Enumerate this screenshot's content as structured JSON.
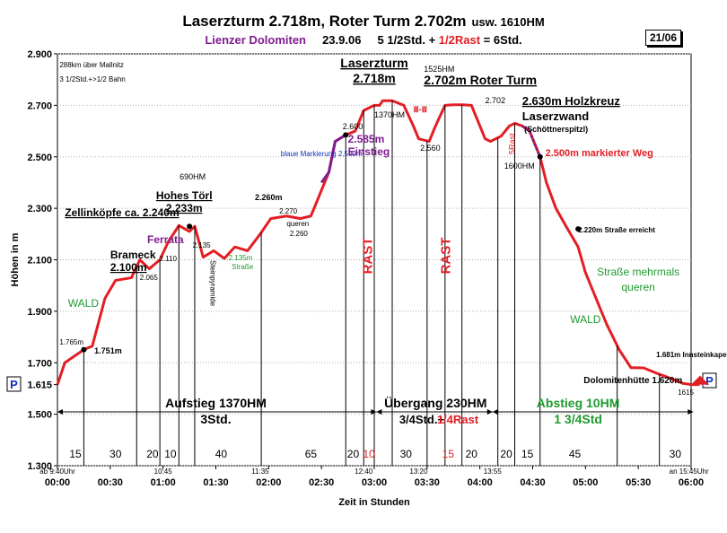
{
  "header": {
    "title": "Laserzturm 2.718m, Roter Turm 2.702m",
    "title_suffix": "usw. 1610HM",
    "region": "Lienzer Dolomiten",
    "date": "23.9.06",
    "time_main": "5 1/2Std. +",
    "time_rast": "1/2Rast",
    "time_total": "= 6Std.",
    "page_no": "21/06"
  },
  "colors": {
    "profile": "#e31e24",
    "purple": "#7f1e8f",
    "green": "#1f9a2e",
    "blue": "#1030c0",
    "plot_bg": "#ffffff"
  },
  "chart_data": {
    "type": "area",
    "xlabel": "Zeit in Stunden",
    "ylabel": "Höhen in m",
    "xlim": [
      0,
      6
    ],
    "ylim": [
      1300,
      2900
    ],
    "x_ticks": [
      "00:00",
      "00:30",
      "01:00",
      "01:30",
      "02:00",
      "02:30",
      "03:00",
      "03:30",
      "04:00",
      "04:30",
      "05:00",
      "05:30",
      "06:00"
    ],
    "y_ticks": [
      "1.300",
      "1.500",
      "1.615",
      "1.700",
      "1.900",
      "2.100",
      "2.300",
      "2.500",
      "2.700",
      "2.900"
    ],
    "series": [
      {
        "x": [
          0.0,
          0.07,
          0.25,
          0.33,
          0.45,
          0.55,
          0.7,
          0.78,
          0.87,
          0.97,
          1.05,
          1.15,
          1.25,
          1.3,
          1.38,
          1.48,
          1.58,
          1.68,
          1.8,
          1.92,
          2.02,
          2.17,
          2.3,
          2.4,
          2.5,
          2.57,
          2.63,
          2.73,
          2.82,
          2.9,
          3.0,
          3.05,
          3.08,
          3.17,
          3.28,
          3.37,
          3.42,
          3.52,
          3.58,
          3.67,
          3.75,
          3.83,
          3.92,
          4.0,
          4.05,
          4.1,
          4.2,
          4.28,
          4.33,
          4.4,
          4.47,
          4.57,
          4.63,
          4.72,
          4.83,
          4.93,
          5.0,
          5.1,
          5.2,
          5.32,
          5.43,
          5.55,
          5.67,
          5.8,
          5.92,
          6.0,
          6.08
        ],
        "y": [
          1615,
          1700,
          1751,
          1765,
          1950,
          2020,
          2030,
          2100,
          2065,
          2100,
          2170,
          2233,
          2210,
          2230,
          2110,
          2135,
          2105,
          2150,
          2135,
          2200,
          2260,
          2270,
          2260,
          2270,
          2370,
          2440,
          2560,
          2585,
          2600,
          2680,
          2700,
          2700,
          2718,
          2718,
          2700,
          2620,
          2570,
          2560,
          2620,
          2700,
          2702,
          2702,
          2700,
          2620,
          2570,
          2560,
          2580,
          2620,
          2630,
          2620,
          2600,
          2500,
          2400,
          2300,
          2220,
          2150,
          2050,
          1950,
          1850,
          1750,
          1681,
          1680,
          1660,
          1640,
          1620,
          1615,
          1615
        ]
      }
    ],
    "rest_labels": [
      "RAST",
      "RAST"
    ],
    "rest_minutes": [
      "10",
      "15"
    ],
    "segment_minutes": [
      "15",
      "30",
      "20",
      "10",
      "40",
      "65",
      "20",
      "10",
      "30",
      "15",
      "20",
      "20",
      "15",
      "45",
      "30"
    ],
    "time_marks": [
      "ab 9:40Uhr",
      "10:45",
      "11:35",
      "12:40",
      "13:20",
      "13:55",
      "an 15:45Uhr"
    ],
    "annotations": {
      "laserzturm_1": "Laserzturm",
      "laserzturm_2": "2.718m",
      "hm1525": "1525HM",
      "roter_turm": "2.702m Roter Turm",
      "holzkreuz": "2.630m Holzkreuz",
      "laserzwand": "Laserzwand",
      "schoettner": "(Schöttnerspitzl)",
      "e2600": "2.600",
      "hm1370": "1370HM",
      "e2560": "2.560",
      "e2702": "2.702",
      "rast5": "5Rast",
      "hm1600": "1600HM",
      "markiert": "2.500m markierter Weg",
      "blaue": "blaue Markierung 2.500m",
      "e2585": "2.585m",
      "einstieg": "Einstieg",
      "e2260_top": "2.260m",
      "e2270": "2.270",
      "queren_small": "queren",
      "e2260": "2.260",
      "hm690": "690HM",
      "hohes_toerl_1": "Hohes Törl",
      "hohes_toerl_2": "2.233m",
      "zellin": "Zellinköpfe ca. 2.240m",
      "ferrata": "Ferrata",
      "brameck_1": "Brameck",
      "brameck_2": "2.100m",
      "e2065": "2.065",
      "e2110": "2.110",
      "e2135": "2.135",
      "steinpyramide": "Steinpyramide",
      "e2135m": "2.135m",
      "strasse": "Straße",
      "km288": "288km über Mallnitz",
      "bahn": "3 1/2Std.+>1/2 Bahn",
      "wald1": "WALD",
      "e1765": "1.765m",
      "e1751": "1.751m",
      "e2220": "2.220m Straße erreicht",
      "strasse_m1": "Straße mehrmals",
      "strasse_m2": "queren",
      "wald2": "WALD",
      "e1681": "1.681m Innsteinkapelle",
      "dolomitenhuette": "Dolomitenhütte 1.620m",
      "e1615": "1615",
      "parking": "P",
      "aufstieg_1": "Aufstieg 1370HM",
      "aufstieg_2": "3Std.",
      "uebergang_1": "Übergang 230HM",
      "uebergang_2a": "3/4Std.+",
      "uebergang_2b": "1/4Rast",
      "abstieg_1": "Abstieg 10HM",
      "abstieg_2": "1 3/4Std",
      "b3": "Ⅲ-Ⅲ"
    }
  }
}
